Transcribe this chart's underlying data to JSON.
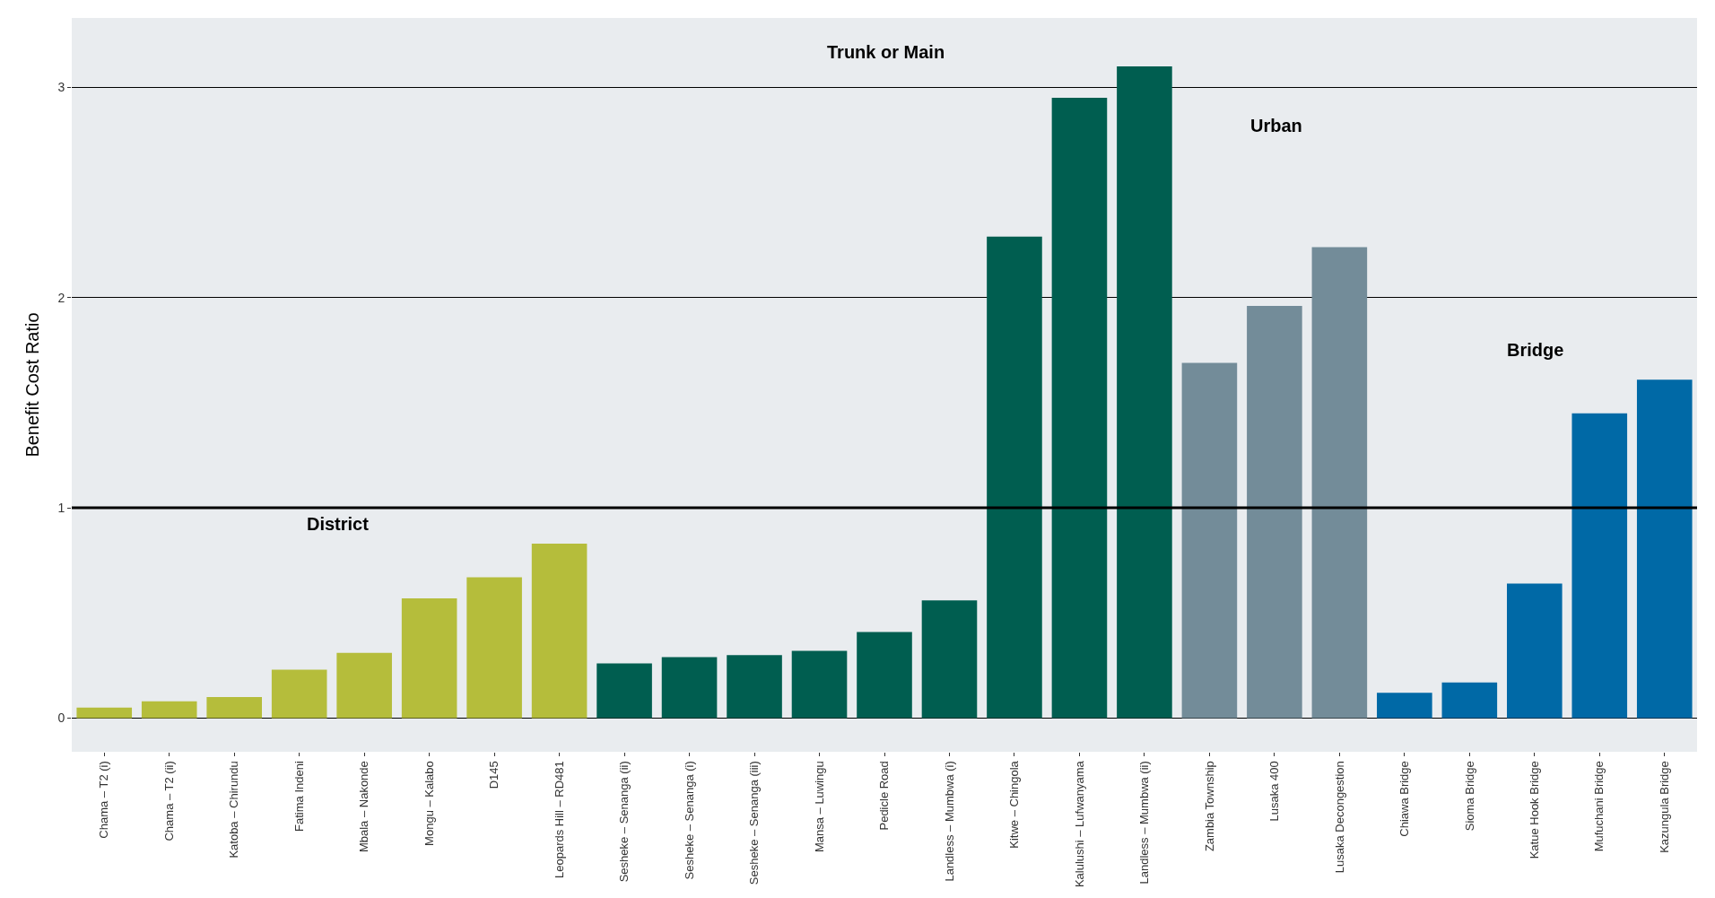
{
  "chart_data": {
    "type": "bar",
    "ylabel": "Benefit Cost Ratio",
    "categories": [
      "Chama – T2 (i)",
      "Chama – T2 (ii)",
      "Katoba – Chirundu",
      "Fatima Indeni",
      "Mbala – Nakonde",
      "Mongu – Kalabo",
      "D145",
      "Leopards Hill – RD481",
      "Sesheke – Senanga (ii)",
      "Sesheke – Senanga (i)",
      "Sesheke – Senanga (iii)",
      "Mansa – Luwingu",
      "Pedicle Road",
      "Landless – Mumbwa (i)",
      "Kitwe – Chingola",
      "Kalulushi – Lufwanyama",
      "Landless – Mumbwa (ii)",
      "Zambia Township",
      "Lusaka 400",
      "Lusaka Decongestion",
      "Chiawa Bridge",
      "Sioma Bridge",
      "Katue Hook Bridge",
      "Mufuchani Bridge",
      "Kazungula Bridge"
    ],
    "values": [
      0.05,
      0.08,
      0.1,
      0.23,
      0.31,
      0.57,
      0.67,
      0.83,
      0.26,
      0.29,
      0.3,
      0.32,
      0.41,
      0.56,
      2.29,
      2.95,
      3.1,
      1.69,
      1.96,
      2.24,
      0.12,
      0.17,
      0.64,
      1.45,
      1.61
    ],
    "colors": [
      "#b5bd3b",
      "#b5bd3b",
      "#b5bd3b",
      "#b5bd3b",
      "#b5bd3b",
      "#b5bd3b",
      "#b5bd3b",
      "#b5bd3b",
      "#005e50",
      "#005e50",
      "#005e50",
      "#005e50",
      "#005e50",
      "#005e50",
      "#005e50",
      "#005e50",
      "#005e50",
      "#738c99",
      "#738c99",
      "#738c99",
      "#0069a6",
      "#0069a6",
      "#0069a6",
      "#0069a6",
      "#0069a6"
    ],
    "ylim": [
      -0.16,
      3.33
    ],
    "yticks": [
      0,
      1,
      2,
      3
    ],
    "grid": "y",
    "ref_lines": [
      {
        "axis": "y",
        "value": 1,
        "color": "#000000"
      }
    ],
    "annotations": [
      "District",
      "Trunk or Main",
      "Urban",
      "Bridge"
    ]
  }
}
